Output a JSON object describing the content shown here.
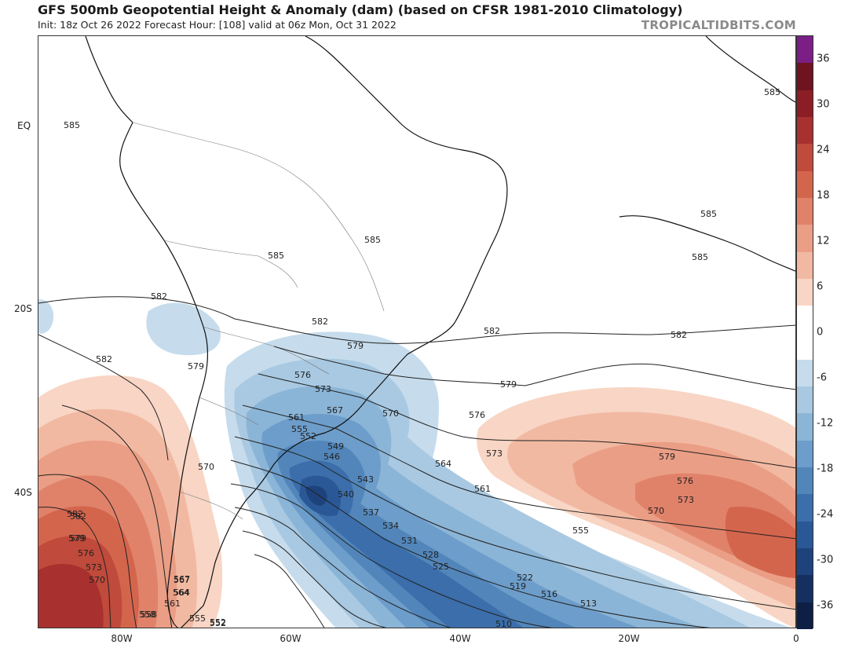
{
  "header": {
    "title": "GFS 500mb Geopotential Height & Anomaly (dam) (based on CFSR 1981-2010 Climatology)",
    "subtitle": "Init: 18z Oct 26 2022   Forecast Hour: [108]   valid at 06z Mon, Oct 31 2022",
    "brand": "TROPICALTIDBITS.COM"
  },
  "axes": {
    "lat_labels": [
      "EQ",
      "20S",
      "40S"
    ],
    "lon_labels": [
      "80W",
      "60W",
      "40W",
      "20W",
      "0"
    ]
  },
  "colorbar": {
    "labels": [
      "36",
      "30",
      "24",
      "18",
      "12",
      "6",
      "0",
      "-6",
      "-12",
      "-18",
      "-24",
      "-30",
      "-36"
    ],
    "colors": [
      "#7b1f87",
      "#6e1420",
      "#8b1e25",
      "#a8302e",
      "#c04a3b",
      "#d4654d",
      "#e0826a",
      "#ea9e85",
      "#f2b9a2",
      "#f8d5c4",
      "#ffffff",
      "#ffffff",
      "#c6dcec",
      "#a9c9e2",
      "#8bb5d7",
      "#6d9dca",
      "#5286ba",
      "#3b6eaa",
      "#2a5896",
      "#1e437c",
      "#152f60",
      "#0e1f45"
    ]
  },
  "contours": {
    "labels": [
      "585",
      "585",
      "585",
      "585",
      "585",
      "585",
      "582",
      "582",
      "582",
      "582",
      "582",
      "582",
      "579",
      "579",
      "579",
      "579",
      "579",
      "576",
      "576",
      "576",
      "573",
      "573",
      "573",
      "570",
      "570",
      "570",
      "567",
      "567",
      "564",
      "564",
      "561",
      "561",
      "558",
      "555",
      "555",
      "552",
      "552",
      "549",
      "546",
      "543",
      "540",
      "537",
      "534",
      "531",
      "528",
      "525",
      "522",
      "519",
      "516",
      "513",
      "510",
      "582",
      "579",
      "576",
      "573",
      "570",
      "567",
      "564",
      "561",
      "558",
      "555",
      "552"
    ]
  },
  "colors": {
    "positive_anomaly": "#d4654d",
    "negative_anomaly": "#3b6eaa",
    "contour_line": "#222222",
    "coastline": "#111111",
    "background": "#ffffff"
  }
}
